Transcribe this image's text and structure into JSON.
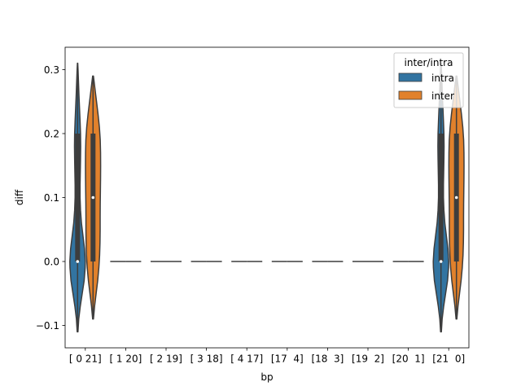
{
  "chart_data": {
    "type": "violin",
    "xlabel": "bp",
    "ylabel": "diff",
    "ylim": [
      -0.135,
      0.335
    ],
    "yticks": [
      -0.1,
      0.0,
      0.1,
      0.2,
      0.3
    ],
    "ytick_labels": [
      "−0.1",
      "0.0",
      "0.1",
      "0.2",
      "0.3"
    ],
    "categories": [
      "[ 0 21]",
      "[ 1 20]",
      "[ 2 19]",
      "[ 3 18]",
      "[ 4 17]",
      "[17  4]",
      "[18  3]",
      "[19  2]",
      "[20  1]",
      "[21  0]"
    ],
    "legend": {
      "title": "inter/intra",
      "placement": "upper-right"
    },
    "series": [
      {
        "name": "intra",
        "color": "#3274a1",
        "violins": [
          {
            "category": "[ 0 21]",
            "min": -0.11,
            "max": 0.31,
            "q1": 0.0,
            "median": 0.0,
            "q3": 0.2,
            "profile": [
              [
                -0.11,
                0.05
              ],
              [
                -0.09,
                0.15
              ],
              [
                -0.07,
                0.35
              ],
              [
                -0.05,
                0.6
              ],
              [
                -0.03,
                0.85
              ],
              [
                -0.01,
                0.98
              ],
              [
                0.0,
                1.0
              ],
              [
                0.02,
                0.9
              ],
              [
                0.04,
                0.7
              ],
              [
                0.06,
                0.5
              ],
              [
                0.08,
                0.38
              ],
              [
                0.1,
                0.32
              ],
              [
                0.12,
                0.32
              ],
              [
                0.14,
                0.35
              ],
              [
                0.16,
                0.38
              ],
              [
                0.18,
                0.4
              ],
              [
                0.2,
                0.38
              ],
              [
                0.22,
                0.32
              ],
              [
                0.24,
                0.25
              ],
              [
                0.26,
                0.18
              ],
              [
                0.28,
                0.12
              ],
              [
                0.3,
                0.06
              ],
              [
                0.31,
                0.02
              ]
            ]
          },
          {
            "category": "[ 1 20]",
            "min": 0.0,
            "max": 0.0,
            "median": 0.0
          },
          {
            "category": "[ 2 19]",
            "min": 0.0,
            "max": 0.0,
            "median": 0.0
          },
          {
            "category": "[ 3 18]",
            "min": 0.0,
            "max": 0.0,
            "median": 0.0
          },
          {
            "category": "[ 4 17]",
            "min": 0.0,
            "max": 0.0,
            "median": 0.0
          },
          {
            "category": "[17  4]",
            "min": 0.0,
            "max": 0.0,
            "median": 0.0
          },
          {
            "category": "[18  3]",
            "min": 0.0,
            "max": 0.0,
            "median": 0.0
          },
          {
            "category": "[19  2]",
            "min": 0.0,
            "max": 0.0,
            "median": 0.0
          },
          {
            "category": "[20  1]",
            "min": 0.0,
            "max": 0.0,
            "median": 0.0
          },
          {
            "category": "[21  0]",
            "min": -0.11,
            "max": 0.31,
            "q1": 0.0,
            "median": 0.0,
            "q3": 0.2,
            "profile": [
              [
                -0.11,
                0.05
              ],
              [
                -0.09,
                0.15
              ],
              [
                -0.07,
                0.35
              ],
              [
                -0.05,
                0.6
              ],
              [
                -0.03,
                0.85
              ],
              [
                -0.01,
                0.98
              ],
              [
                0.0,
                1.0
              ],
              [
                0.02,
                0.9
              ],
              [
                0.04,
                0.7
              ],
              [
                0.06,
                0.5
              ],
              [
                0.08,
                0.38
              ],
              [
                0.1,
                0.32
              ],
              [
                0.12,
                0.32
              ],
              [
                0.14,
                0.35
              ],
              [
                0.16,
                0.38
              ],
              [
                0.18,
                0.4
              ],
              [
                0.2,
                0.38
              ],
              [
                0.22,
                0.32
              ],
              [
                0.24,
                0.25
              ],
              [
                0.26,
                0.18
              ],
              [
                0.28,
                0.12
              ],
              [
                0.3,
                0.06
              ],
              [
                0.31,
                0.02
              ]
            ]
          }
        ]
      },
      {
        "name": "inter",
        "color": "#e1812c",
        "violins": [
          {
            "category": "[ 0 21]",
            "min": -0.09,
            "max": 0.29,
            "q1": 0.0,
            "median": 0.1,
            "q3": 0.2,
            "profile": [
              [
                -0.09,
                0.05
              ],
              [
                -0.07,
                0.2
              ],
              [
                -0.05,
                0.4
              ],
              [
                -0.03,
                0.6
              ],
              [
                -0.01,
                0.75
              ],
              [
                0.01,
                0.85
              ],
              [
                0.03,
                0.9
              ],
              [
                0.05,
                0.92
              ],
              [
                0.07,
                0.92
              ],
              [
                0.09,
                0.93
              ],
              [
                0.11,
                0.95
              ],
              [
                0.13,
                0.97
              ],
              [
                0.15,
                0.98
              ],
              [
                0.17,
                0.97
              ],
              [
                0.19,
                0.93
              ],
              [
                0.21,
                0.82
              ],
              [
                0.23,
                0.65
              ],
              [
                0.25,
                0.45
              ],
              [
                0.27,
                0.25
              ],
              [
                0.29,
                0.05
              ]
            ]
          },
          {
            "category": "[ 1 20]",
            "min": 0.0,
            "max": 0.0,
            "median": 0.0
          },
          {
            "category": "[ 2 19]",
            "min": 0.0,
            "max": 0.0,
            "median": 0.0
          },
          {
            "category": "[ 3 18]",
            "min": 0.0,
            "max": 0.0,
            "median": 0.0
          },
          {
            "category": "[ 4 17]",
            "min": 0.0,
            "max": 0.0,
            "median": 0.0
          },
          {
            "category": "[17  4]",
            "min": 0.0,
            "max": 0.0,
            "median": 0.0
          },
          {
            "category": "[18  3]",
            "min": 0.0,
            "max": 0.0,
            "median": 0.0
          },
          {
            "category": "[19  2]",
            "min": 0.0,
            "max": 0.0,
            "median": 0.0
          },
          {
            "category": "[20  1]",
            "min": 0.0,
            "max": 0.0,
            "median": 0.0
          },
          {
            "category": "[21  0]",
            "min": -0.09,
            "max": 0.29,
            "q1": 0.0,
            "median": 0.1,
            "q3": 0.2,
            "profile": [
              [
                -0.09,
                0.05
              ],
              [
                -0.07,
                0.2
              ],
              [
                -0.05,
                0.4
              ],
              [
                -0.03,
                0.6
              ],
              [
                -0.01,
                0.75
              ],
              [
                0.01,
                0.85
              ],
              [
                0.03,
                0.9
              ],
              [
                0.05,
                0.92
              ],
              [
                0.07,
                0.92
              ],
              [
                0.09,
                0.93
              ],
              [
                0.11,
                0.95
              ],
              [
                0.13,
                0.97
              ],
              [
                0.15,
                0.98
              ],
              [
                0.17,
                0.97
              ],
              [
                0.19,
                0.93
              ],
              [
                0.21,
                0.82
              ],
              [
                0.23,
                0.65
              ],
              [
                0.25,
                0.45
              ],
              [
                0.27,
                0.25
              ],
              [
                0.29,
                0.05
              ]
            ]
          }
        ]
      }
    ]
  }
}
